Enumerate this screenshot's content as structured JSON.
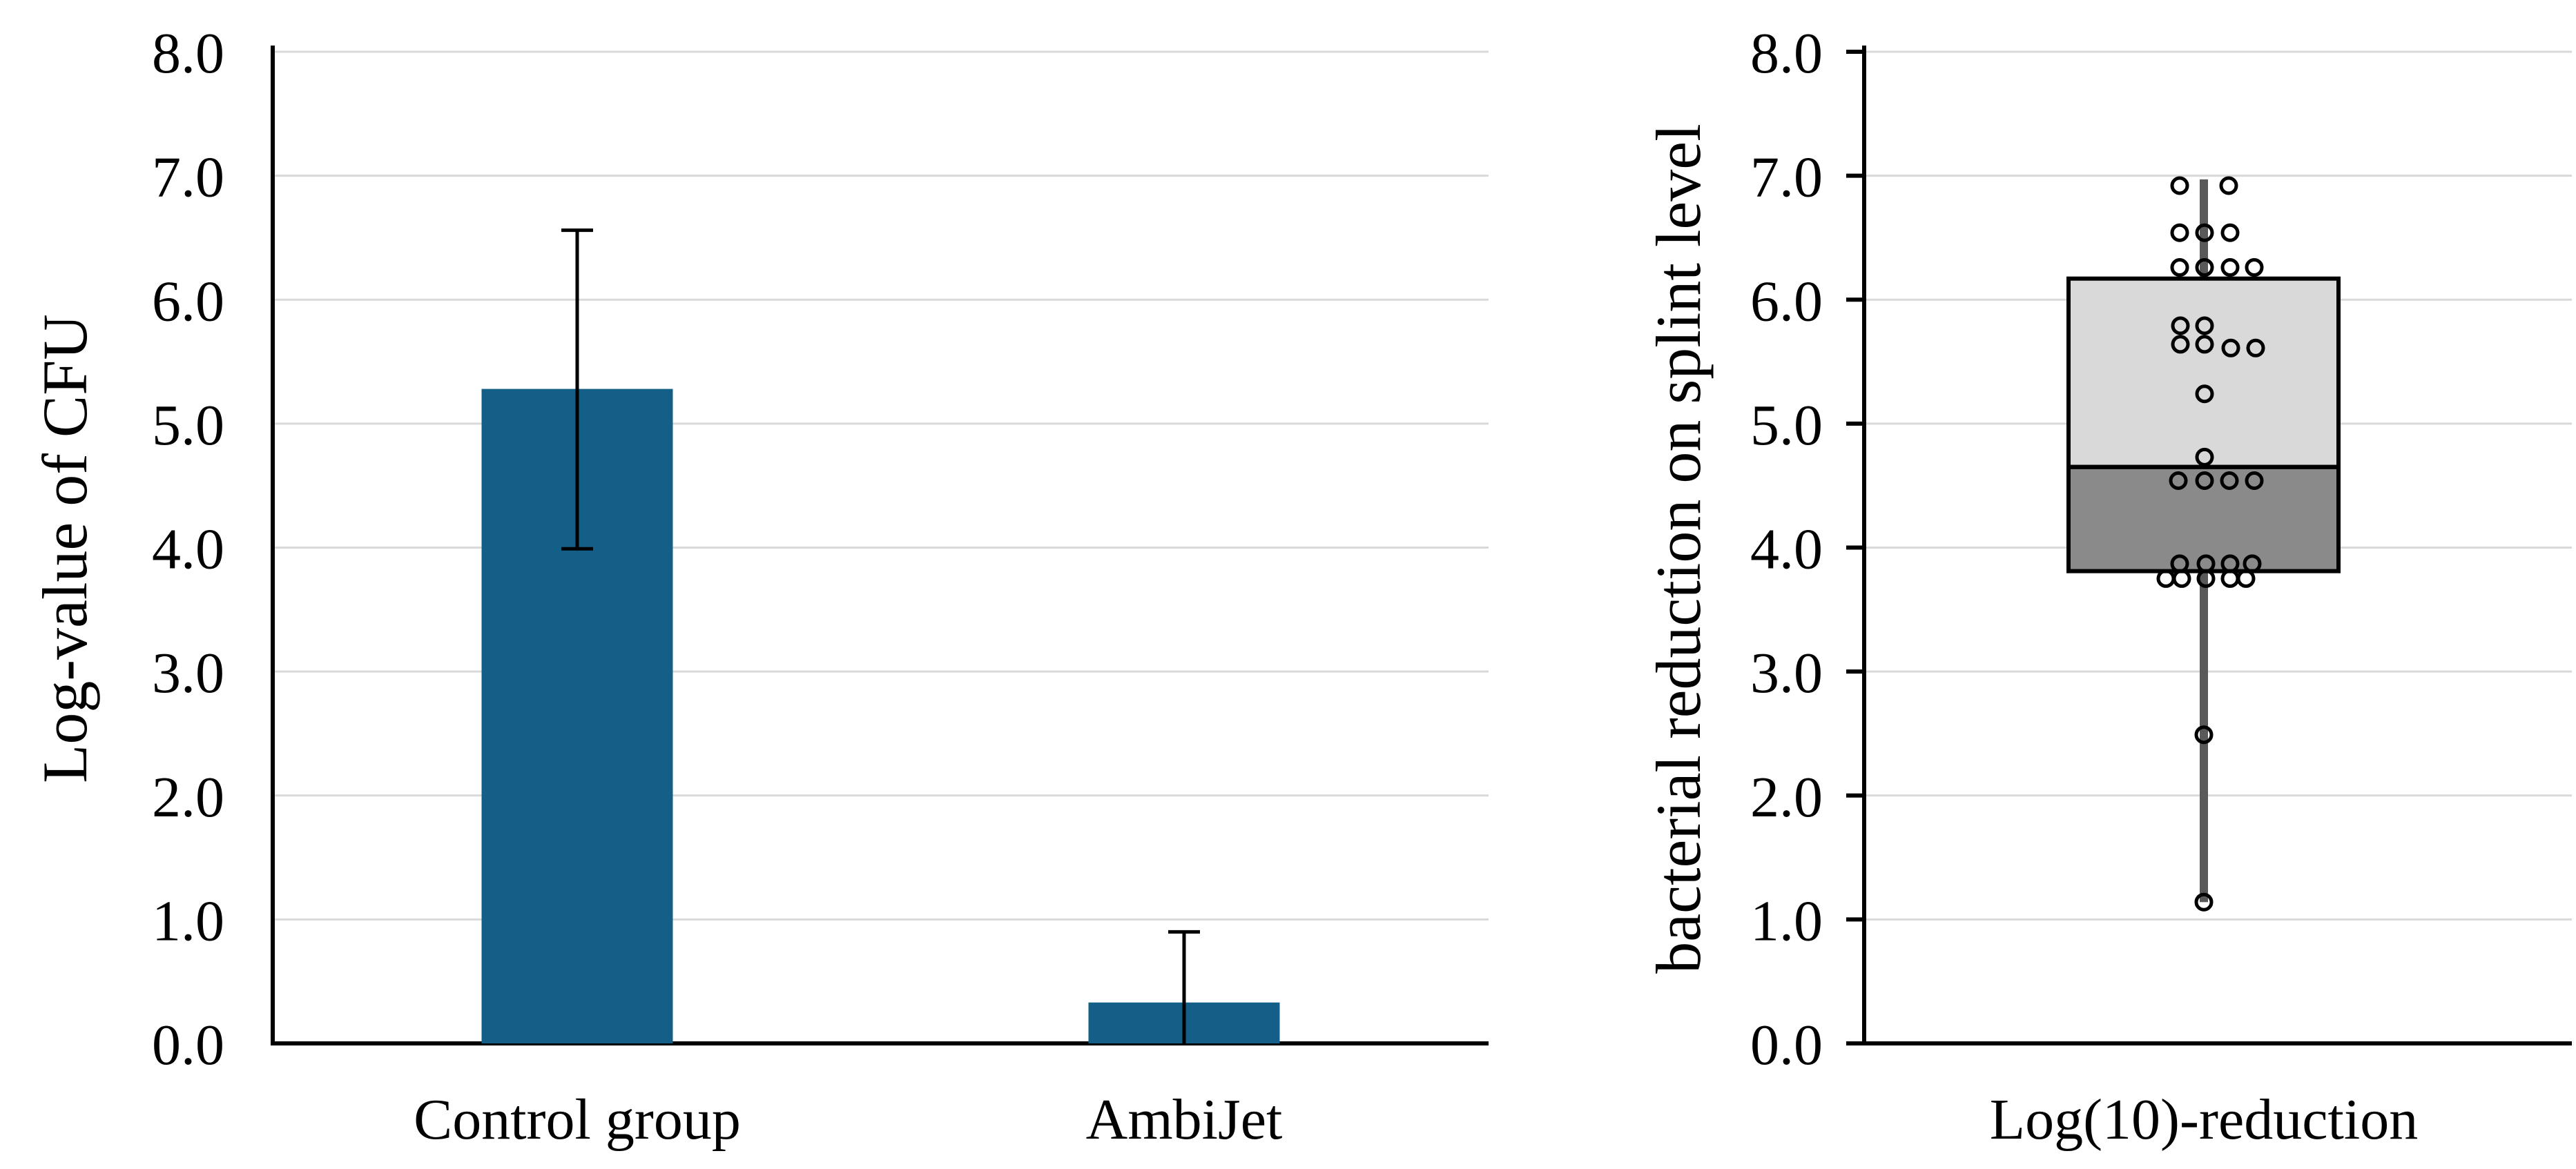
{
  "figure": {
    "background": "#ffffff",
    "panels": [
      "bar-chart",
      "box-plot"
    ]
  },
  "chart_data": [
    {
      "type": "bar",
      "title": "",
      "ylabel": "Log-value of CFU",
      "xlabel": "",
      "categories": [
        "Control group",
        "AmbiJet"
      ],
      "values": [
        5.28,
        0.33
      ],
      "error_low": [
        3.99,
        0.0
      ],
      "error_high": [
        6.56,
        0.9
      ],
      "ylim": [
        0.0,
        8.0
      ],
      "ytick_step": 1.0,
      "ytick_labels": [
        "0.0",
        "1.0",
        "2.0",
        "3.0",
        "4.0",
        "5.0",
        "6.0",
        "7.0",
        "8.0"
      ],
      "grid": true,
      "legend_position": "none",
      "bar_color": "#135F87",
      "error_color": "#000000",
      "gridline_color": "#D9D9D9",
      "axis_color": "#000000"
    },
    {
      "type": "box",
      "title": "",
      "ylabel": "bacterial reduction on splint level",
      "xlabel": "Log(10)-reduction",
      "ylim": [
        0.0,
        8.0
      ],
      "ytick_step": 1.0,
      "ytick_labels": [
        "0.0",
        "1.0",
        "2.0",
        "3.0",
        "4.0",
        "5.0",
        "6.0",
        "7.0",
        "8.0"
      ],
      "grid": true,
      "legend_position": "none",
      "box": {
        "q1": 3.81,
        "median": 4.65,
        "q3": 6.17,
        "whisker_low": 1.14,
        "whisker_high": 6.97
      },
      "colors": {
        "upper_box_fill": "#D9D9D9",
        "lower_box_fill": "#8A8A8A",
        "box_stroke": "#000000",
        "whisker": "#595959",
        "point_stroke": "#000000",
        "gridline": "#D9D9D9",
        "axis": "#000000"
      },
      "points": [
        [
          -35,
          6.92
        ],
        [
          36,
          6.92
        ],
        [
          -35,
          6.54
        ],
        [
          1,
          6.54
        ],
        [
          38,
          6.54
        ],
        [
          -35,
          6.26
        ],
        [
          1,
          6.26
        ],
        [
          38,
          6.26
        ],
        [
          73,
          6.26
        ],
        [
          -34,
          5.79
        ],
        [
          1,
          5.79
        ],
        [
          -34,
          5.64
        ],
        [
          1,
          5.64
        ],
        [
          39,
          5.61
        ],
        [
          75,
          5.61
        ],
        [
          1,
          5.24
        ],
        [
          1,
          4.73
        ],
        [
          -37,
          4.54
        ],
        [
          1,
          4.54
        ],
        [
          37,
          4.54
        ],
        [
          73,
          4.54
        ],
        [
          -35,
          3.87
        ],
        [
          3,
          3.87
        ],
        [
          38,
          3.87
        ],
        [
          70,
          3.87
        ],
        [
          -55,
          3.75
        ],
        [
          -32,
          3.75
        ],
        [
          3,
          3.75
        ],
        [
          38,
          3.75
        ],
        [
          61,
          3.75
        ],
        [
          0,
          2.49
        ],
        [
          0,
          1.14
        ]
      ]
    }
  ]
}
